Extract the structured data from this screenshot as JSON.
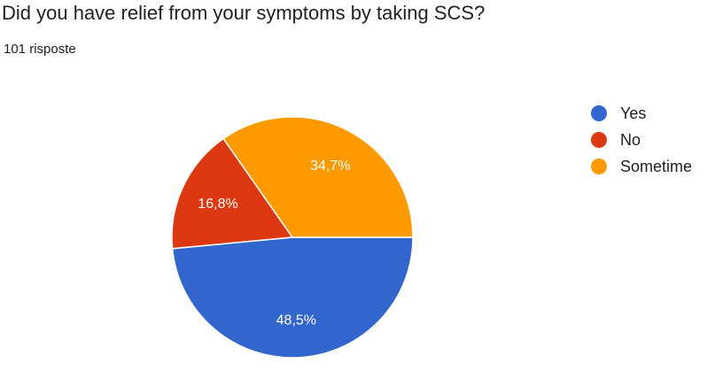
{
  "header": {
    "title": "Did you have relief from your symptoms by taking SCS?",
    "response_count": "101 risposte"
  },
  "chart_data": {
    "type": "pie",
    "categories": [
      "Yes",
      "No",
      "Sometime"
    ],
    "values": [
      48.5,
      16.8,
      34.7
    ],
    "value_labels": [
      "48,5%",
      "16,8%",
      "34,7%"
    ],
    "colors": [
      "#3366cc",
      "#dc3912",
      "#ff9900"
    ],
    "legend_position": "right"
  }
}
